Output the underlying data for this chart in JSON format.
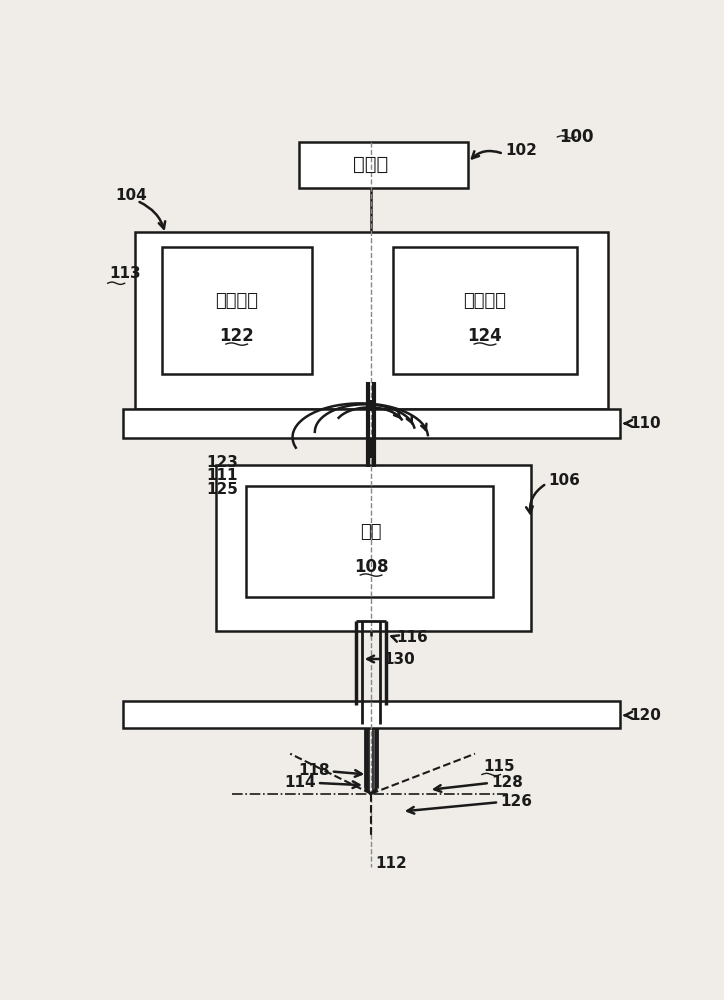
{
  "bg_color": "#f0ede8",
  "line_color": "#1a1a1a",
  "label_100": "100",
  "label_102": "102",
  "label_104": "104",
  "label_106": "106",
  "label_108": "108",
  "label_110": "110",
  "label_111": "111",
  "label_112": "112",
  "label_113": "113",
  "label_114": "114",
  "label_115": "115",
  "label_116": "116",
  "label_118": "118",
  "label_120": "120",
  "label_122": "122",
  "label_123": "123",
  "label_124": "124",
  "label_125": "125",
  "label_126": "126",
  "label_128": "128",
  "label_130": "130",
  "text_controller": "控制器",
  "text_pan": "平移电机",
  "text_rot": "旋转电机",
  "text_camera": "相机",
  "font_size_label": 10,
  "font_size_chinese": 13
}
